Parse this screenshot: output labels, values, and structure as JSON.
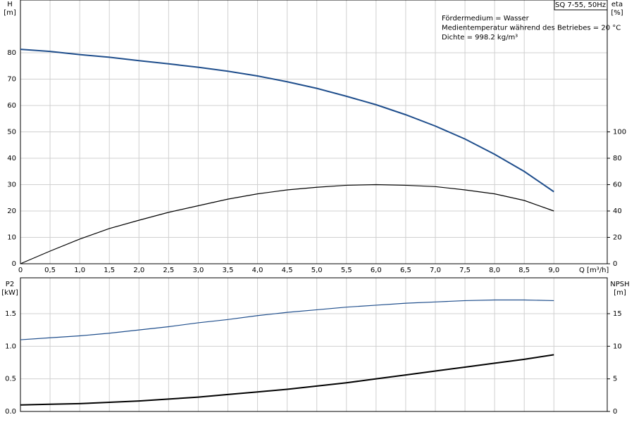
{
  "chart_data": [
    {
      "type": "line",
      "title": "SQ 7-55, 50Hz",
      "annotations": [
        "Fördermedium = Wasser",
        "Medientemperatur während des Betriebes = 20 °C",
        "Dichte = 998.2 kg/m³"
      ],
      "y_label": "H",
      "y_unit": "[m]",
      "y2_label": "eta",
      "y2_unit": "[%]",
      "x_label": "Q [m³/h]",
      "x": [
        0,
        0.5,
        1.0,
        1.5,
        2.0,
        2.5,
        3.0,
        3.5,
        4.0,
        4.5,
        5.0,
        5.5,
        6.0,
        6.5,
        7.0,
        7.5,
        8.0,
        8.5,
        9.0
      ],
      "series": [
        {
          "color": "#1f4e8c",
          "width": 2,
          "values": [
            81.3,
            80.5,
            79.3,
            78.3,
            77,
            75.8,
            74.5,
            73,
            71.2,
            69,
            66.5,
            63.5,
            60.3,
            56.5,
            52.2,
            47.3,
            41.5,
            35,
            27.3
          ]
        },
        {
          "color": "#000000",
          "width": 1.2,
          "axis": "y2",
          "values": [
            0,
            9.6,
            18.7,
            26.7,
            33,
            39,
            44,
            49,
            53,
            56,
            58,
            59.5,
            60,
            59.5,
            58.5,
            56,
            53,
            48,
            40
          ]
        }
      ],
      "xlim": [
        0,
        9.9
      ],
      "ylim": [
        0,
        100
      ],
      "y2lim": [
        0,
        200
      ],
      "xticks": [
        0,
        {
          "value": 0.5,
          "label": "0,5"
        },
        {
          "value": 1.0,
          "label": "1,0"
        },
        {
          "value": 1.5,
          "label": "1,5"
        },
        {
          "value": 2.0,
          "label": "2,0"
        },
        {
          "value": 2.5,
          "label": "2,5"
        },
        {
          "value": 3.0,
          "label": "3,0"
        },
        {
          "value": 3.5,
          "label": "3,5"
        },
        {
          "value": 4.0,
          "label": "4,0"
        },
        {
          "value": 4.5,
          "label": "4,5"
        },
        {
          "value": 5.0,
          "label": "5,0"
        },
        {
          "value": 5.5,
          "label": "5,5"
        },
        {
          "value": 6.0,
          "label": "6,0"
        },
        {
          "value": 6.5,
          "label": "6,5"
        },
        {
          "value": 7.0,
          "label": "7,0"
        },
        {
          "value": 7.5,
          "label": "7,5"
        },
        {
          "value": 8.0,
          "label": "8,0"
        },
        {
          "value": 8.5,
          "label": "8,5"
        },
        {
          "value": 9.0,
          "label": "9,0"
        }
      ],
      "yticks": [
        0,
        10,
        20,
        30,
        40,
        50,
        60,
        70,
        80
      ],
      "y2ticks": [
        0,
        20,
        40,
        60,
        80,
        100
      ],
      "x_tick_labels": true,
      "grid": true
    },
    {
      "type": "line",
      "y_label": "P2",
      "y_unit": "[kW]",
      "y2_label": "NPSH",
      "y2_unit": "[m]",
      "x": [
        0,
        0.5,
        1.0,
        1.5,
        2.0,
        2.5,
        3.0,
        3.5,
        4.0,
        4.5,
        5.0,
        5.5,
        6.0,
        6.5,
        7.0,
        7.5,
        8.0,
        8.5,
        9.0
      ],
      "series": [
        {
          "color": "#1f4e8c",
          "width": 1.2,
          "values": [
            1.1,
            1.13,
            1.16,
            1.2,
            1.25,
            1.3,
            1.36,
            1.41,
            1.47,
            1.52,
            1.56,
            1.6,
            1.63,
            1.66,
            1.68,
            1.7,
            1.71,
            1.71,
            1.7
          ]
        },
        {
          "color": "#000000",
          "width": 2,
          "axis": "y2",
          "values": [
            1.0,
            1.1,
            1.2,
            1.4,
            1.6,
            1.9,
            2.2,
            2.6,
            3.0,
            3.4,
            3.9,
            4.4,
            5.0,
            5.6,
            6.2,
            6.8,
            7.4,
            8.0,
            8.7
          ]
        }
      ],
      "xlim": [
        0,
        9.9
      ],
      "ylim": [
        0,
        2.05
      ],
      "y2lim": [
        0,
        20.5
      ],
      "xticks": [
        0,
        0.5,
        1.0,
        1.5,
        2.0,
        2.5,
        3.0,
        3.5,
        4.0,
        4.5,
        5.0,
        5.5,
        6.0,
        6.5,
        7.0,
        7.5,
        8.0,
        8.5,
        9.0
      ],
      "yticks": [
        {
          "value": 0,
          "label": "0.0"
        },
        0.5,
        {
          "value": 1.0,
          "label": "1.0"
        },
        1.5
      ],
      "y2ticks": [
        0,
        5,
        10,
        15
      ],
      "x_tick_labels": false,
      "grid": true
    }
  ]
}
